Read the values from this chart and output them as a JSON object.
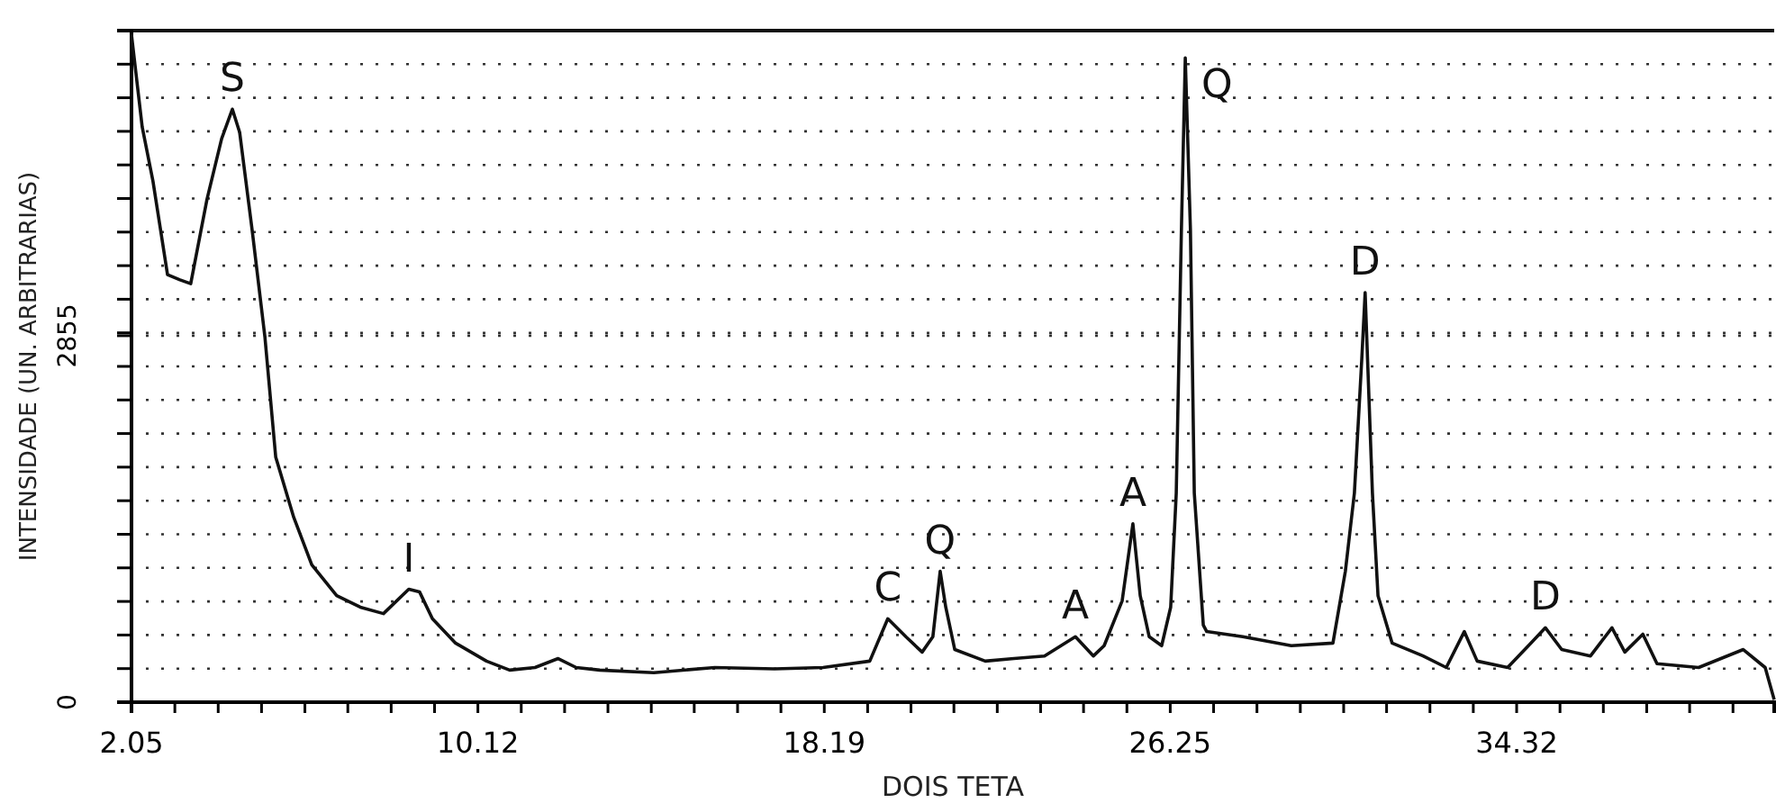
{
  "chart_data": {
    "type": "line",
    "xlabel": "DOIS TETA",
    "ylabel": "INTENSIDADE (UN. ARBITRARIAS)",
    "xlim": [
      2.05,
      40.32
    ],
    "ylim": [
      0,
      5232
    ],
    "xticks": [
      2.05,
      {
        "value": 3.06,
        "label": null
      },
      {
        "value": 4.07,
        "label": null
      },
      {
        "value": 5.08,
        "label": null
      },
      {
        "value": 6.09,
        "label": null
      },
      {
        "value": 7.09,
        "label": null
      },
      {
        "value": 8.1,
        "label": null
      },
      {
        "value": 9.11,
        "label": null
      },
      10.12,
      {
        "value": 11.13,
        "label": null
      },
      {
        "value": 12.14,
        "label": null
      },
      {
        "value": 13.15,
        "label": null
      },
      {
        "value": 14.16,
        "label": null
      },
      {
        "value": 15.16,
        "label": null
      },
      {
        "value": 16.17,
        "label": null
      },
      {
        "value": 17.18,
        "label": null
      },
      18.19,
      {
        "value": 19.2,
        "label": null
      },
      {
        "value": 20.21,
        "label": null
      },
      {
        "value": 21.21,
        "label": null
      },
      {
        "value": 22.22,
        "label": null
      },
      {
        "value": 23.23,
        "label": null
      },
      {
        "value": 24.23,
        "label": null
      },
      {
        "value": 25.24,
        "label": null
      },
      26.25,
      {
        "value": 27.26,
        "label": null
      },
      {
        "value": 28.27,
        "label": null
      },
      {
        "value": 29.28,
        "label": null
      },
      {
        "value": 30.29,
        "label": null
      },
      {
        "value": 31.29,
        "label": null
      },
      {
        "value": 32.3,
        "label": null
      },
      {
        "value": 33.31,
        "label": null
      },
      34.32,
      {
        "value": 35.33,
        "label": null
      },
      {
        "value": 36.34,
        "label": null
      },
      {
        "value": 37.35,
        "label": null
      },
      {
        "value": 38.35,
        "label": null
      },
      {
        "value": 39.36,
        "label": null
      }
    ],
    "yticks": [
      0,
      {
        "value": 261.6,
        "label": null
      },
      {
        "value": 523.2,
        "label": null
      },
      {
        "value": 784.8,
        "label": null
      },
      {
        "value": 1046.4,
        "label": null
      },
      {
        "value": 1308,
        "label": null
      },
      {
        "value": 1569.6,
        "label": null
      },
      {
        "value": 1831.2,
        "label": null
      },
      {
        "value": 2092.8,
        "label": null
      },
      {
        "value": 2354.4,
        "label": null
      },
      {
        "value": 2616,
        "label": null
      },
      2855,
      {
        "value": 2877.6,
        "label": null
      },
      {
        "value": 3139.2,
        "label": null
      },
      {
        "value": 3400.8,
        "label": null
      },
      {
        "value": 3662.4,
        "label": null
      },
      {
        "value": 3924,
        "label": null
      },
      {
        "value": 4185.6,
        "label": null
      },
      {
        "value": 4447.2,
        "label": null
      },
      {
        "value": 4708.8,
        "label": null
      },
      {
        "value": 4970.4,
        "label": null
      },
      {
        "value": 5232,
        "label": null
      }
    ],
    "grid": "y",
    "marker": "none",
    "line_style": "solid",
    "series": [
      {
        "color": "#111111",
        "x": [
          2.05,
          2.3,
          2.55,
          2.89,
          3.18,
          3.43,
          3.81,
          4.15,
          4.4,
          4.57,
          4.86,
          5.16,
          5.41,
          5.83,
          6.25,
          6.83,
          7.38,
          7.92,
          8.51,
          8.76,
          9.06,
          9.6,
          10.32,
          10.86,
          11.45,
          11.99,
          12.41,
          12.96,
          14.22,
          15.64,
          17.03,
          18.16,
          19.25,
          19.67,
          20.09,
          20.47,
          20.72,
          20.89,
          21.02,
          21.23,
          21.94,
          22.61,
          23.32,
          24.04,
          24.46,
          24.71,
          25.13,
          25.38,
          25.55,
          25.76,
          26.05,
          26.26,
          26.39,
          26.51,
          26.6,
          26.72,
          26.81,
          27.02,
          27.1,
          27.94,
          29.07,
          30.04,
          30.33,
          30.54,
          30.71,
          30.79,
          30.96,
          31.09,
          31.42,
          32.14,
          32.68,
          33.1,
          33.4,
          34.11,
          34.65,
          34.99,
          35.37,
          36.04,
          36.54,
          36.84,
          37.26,
          37.59,
          38.56,
          39.6,
          40.11,
          40.32
        ],
        "values": [
          5200,
          4480,
          4060,
          3330,
          3290,
          3260,
          3920,
          4390,
          4620,
          4440,
          3680,
          2840,
          1910,
          1440,
          1070,
          830,
          740,
          690,
          880,
          860,
          650,
          460,
          320,
          250,
          270,
          340,
          270,
          250,
          230,
          270,
          260,
          270,
          320,
          650,
          510,
          390,
          510,
          1020,
          740,
          410,
          320,
          340,
          360,
          510,
          360,
          440,
          790,
          1390,
          830,
          510,
          440,
          740,
          1630,
          3680,
          5020,
          3680,
          1630,
          600,
          550,
          510,
          440,
          460,
          1020,
          1630,
          2660,
          3190,
          1630,
          830,
          460,
          360,
          270,
          550,
          320,
          270,
          460,
          580,
          410,
          360,
          580,
          390,
          530,
          300,
          270,
          410,
          270,
          20
        ]
      }
    ],
    "annotations": [
      {
        "text": "S",
        "x": 4.4,
        "y": 4620
      },
      {
        "text": "I",
        "x": 8.51,
        "y": 880
      },
      {
        "text": "C",
        "x": 19.67,
        "y": 650
      },
      {
        "text": "Q",
        "x": 20.89,
        "y": 1020
      },
      {
        "text": "A",
        "x": 24.04,
        "y": 510
      },
      {
        "text": "A",
        "x": 25.38,
        "y": 1390
      },
      {
        "text": "Q",
        "x": 26.6,
        "y": 5020
      },
      {
        "text": "D",
        "x": 30.79,
        "y": 3190
      },
      {
        "text": "D",
        "x": 34.99,
        "y": 580
      }
    ]
  }
}
